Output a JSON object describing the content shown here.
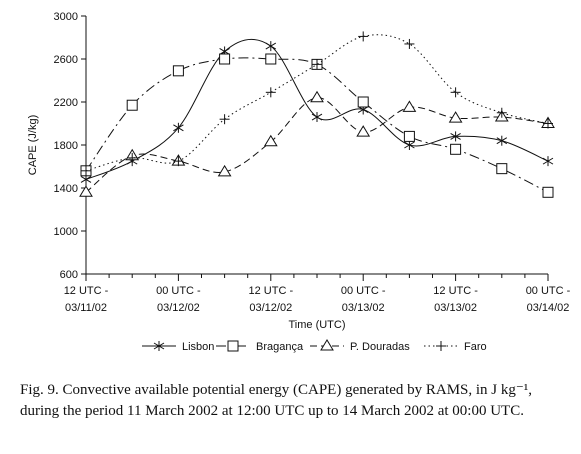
{
  "chart_data": {
    "type": "line",
    "xlabel": "Time (UTC)",
    "ylabel": "CAPE (J/kg)",
    "ylim": [
      600,
      3000
    ],
    "yticks": [
      600,
      1000,
      1400,
      1800,
      2200,
      2600,
      3000
    ],
    "grid": false,
    "legend_position": "bottom",
    "x_ticks": [
      {
        "h": 0,
        "line1": "12 UTC -",
        "line2": "03/11/02"
      },
      {
        "h": 12,
        "line1": "00 UTC -",
        "line2": "03/12/02"
      },
      {
        "h": 24,
        "line1": "12 UTC -",
        "line2": "03/12/02"
      },
      {
        "h": 36,
        "line1": "00 UTC -",
        "line2": "03/13/02"
      },
      {
        "h": 48,
        "line1": "12 UTC -",
        "line2": "03/13/02"
      },
      {
        "h": 60,
        "line1": "00 UTC -",
        "line2": "03/14/02"
      }
    ],
    "x": [
      0,
      3,
      6,
      9,
      12,
      15,
      18,
      21,
      24,
      27,
      30,
      33,
      36,
      39,
      42,
      45,
      48,
      51,
      54,
      57,
      60
    ],
    "series": [
      {
        "name": "Lisbon",
        "marker": "asterisk",
        "dash": "solid",
        "x": [
          0,
          6,
          12,
          18,
          24,
          30,
          36,
          42,
          48,
          54,
          60
        ],
        "values": [
          1480,
          1650,
          1960,
          2670,
          2720,
          2060,
          2130,
          1800,
          1880,
          1840,
          1650
        ]
      },
      {
        "name": "Bragança",
        "marker": "square",
        "dash": "dashdot",
        "x": [
          0,
          6,
          12,
          18,
          24,
          30,
          36,
          42,
          48,
          54,
          60
        ],
        "values": [
          1560,
          2170,
          2490,
          2600,
          2600,
          2550,
          2200,
          1880,
          1760,
          1580,
          1360
        ]
      },
      {
        "name": "P. Douradas",
        "marker": "triangle",
        "dash": "dashed",
        "x": [
          0,
          6,
          12,
          18,
          24,
          30,
          36,
          42,
          48,
          54,
          60
        ],
        "values": [
          1360,
          1700,
          1650,
          1550,
          1830,
          2240,
          1920,
          2150,
          2050,
          2060,
          2000
        ]
      },
      {
        "name": "Faro",
        "marker": "plus",
        "dash": "dotted",
        "x": [
          0,
          6,
          12,
          18,
          24,
          30,
          36,
          42,
          48,
          54,
          60
        ],
        "values": [
          1560,
          1680,
          1650,
          2040,
          2290,
          2550,
          2810,
          2740,
          2290,
          2100,
          2000
        ]
      }
    ]
  },
  "caption": "Fig. 9. Convective available potential energy (CAPE) generated by RAMS, in J kg⁻¹, during the period 11 March 2002 at 12:00 UTC up to 14 March 2002 at 00:00 UTC."
}
